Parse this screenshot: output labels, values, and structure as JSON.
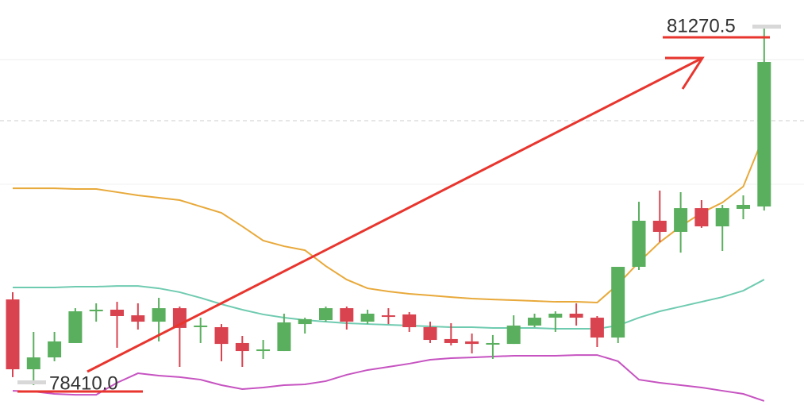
{
  "chart_data": {
    "type": "candlestick",
    "ylim": [
      78251,
      81493
    ],
    "up_color": "#5aaf5e",
    "down_color": "#d9434f",
    "open": [
      79096,
      78537,
      78632,
      78747,
      79001,
      79014,
      78969,
      78918,
      79026,
      78874,
      78874,
      78747,
      78683,
      78683,
      78899,
      78931,
      79026,
      78918,
      78969,
      78976,
      78874,
      78779,
      78760,
      78734,
      78740,
      78887,
      78950,
      78982,
      78950,
      78791,
      79357,
      79726,
      79637,
      79827,
      79681,
      79821,
      79840
    ],
    "high": [
      79154,
      78836,
      78836,
      79026,
      79065,
      79077,
      79065,
      79109,
      79039,
      78950,
      78899,
      78804,
      78772,
      78982,
      78950,
      79039,
      79039,
      79014,
      79026,
      78995,
      78918,
      78906,
      78823,
      78811,
      78969,
      78982,
      79001,
      79065,
      78963,
      79357,
      79878,
      79967,
      79955,
      79891,
      79853,
      79929,
      81270.5
    ],
    "low": [
      78474,
      78410,
      78601,
      78747,
      78918,
      78709,
      78855,
      78760,
      78556,
      78747,
      78601,
      78556,
      78620,
      78683,
      78823,
      78918,
      78855,
      78899,
      78899,
      78836,
      78747,
      78728,
      78664,
      78620,
      78740,
      78874,
      78836,
      78887,
      78715,
      78747,
      79332,
      79554,
      79471,
      79669,
      79484,
      79738,
      79808
    ],
    "close": [
      78537,
      78632,
      78760,
      79001,
      79014,
      78963,
      78918,
      79026,
      78868,
      78887,
      78740,
      78683,
      78696,
      78912,
      78938,
      79026,
      78918,
      78982,
      78957,
      78874,
      78772,
      78747,
      78740,
      78747,
      78887,
      78950,
      78982,
      78950,
      78791,
      79357,
      79726,
      79637,
      79827,
      79681,
      79827,
      79853,
      80997
    ],
    "series": [
      {
        "color": "#e8a93a",
        "values": [
          79986,
          79986,
          79986,
          79980,
          79980,
          79955,
          79929,
          79910,
          79891,
          79840,
          79789,
          79681,
          79567,
          79522,
          79490,
          79363,
          79255,
          79185,
          79160,
          79141,
          79128,
          79115,
          79103,
          79096,
          79090,
          79084,
          79077,
          79077,
          79071,
          79217,
          79395,
          79554,
          79681,
          79789,
          79872,
          80000,
          80412
        ]
      },
      {
        "color": "#6fcbb0",
        "values": [
          79192,
          79192,
          79192,
          79198,
          79198,
          79204,
          79204,
          79185,
          79154,
          79109,
          79058,
          79014,
          78976,
          78950,
          78931,
          78918,
          78906,
          78899,
          78893,
          78887,
          78880,
          78874,
          78874,
          78868,
          78868,
          78868,
          78861,
          78861,
          78861,
          78887,
          78950,
          79001,
          79039,
          79077,
          79115,
          79166,
          79255
        ]
      },
      {
        "color": "#c653c1",
        "values": [
          78365,
          78359,
          78340,
          78333,
          78333,
          78429,
          78505,
          78486,
          78474,
          78454,
          78410,
          78378,
          78391,
          78410,
          78416,
          78442,
          78493,
          78531,
          78556,
          78582,
          78613,
          78626,
          78632,
          78639,
          78645,
          78645,
          78645,
          78651,
          78651,
          78601,
          78454,
          78429,
          78410,
          78391,
          78365,
          78340,
          78283
        ]
      }
    ],
    "annotations": [
      81270.5,
      {
        "value": 78410,
        "label": "78410.0"
      }
    ]
  }
}
